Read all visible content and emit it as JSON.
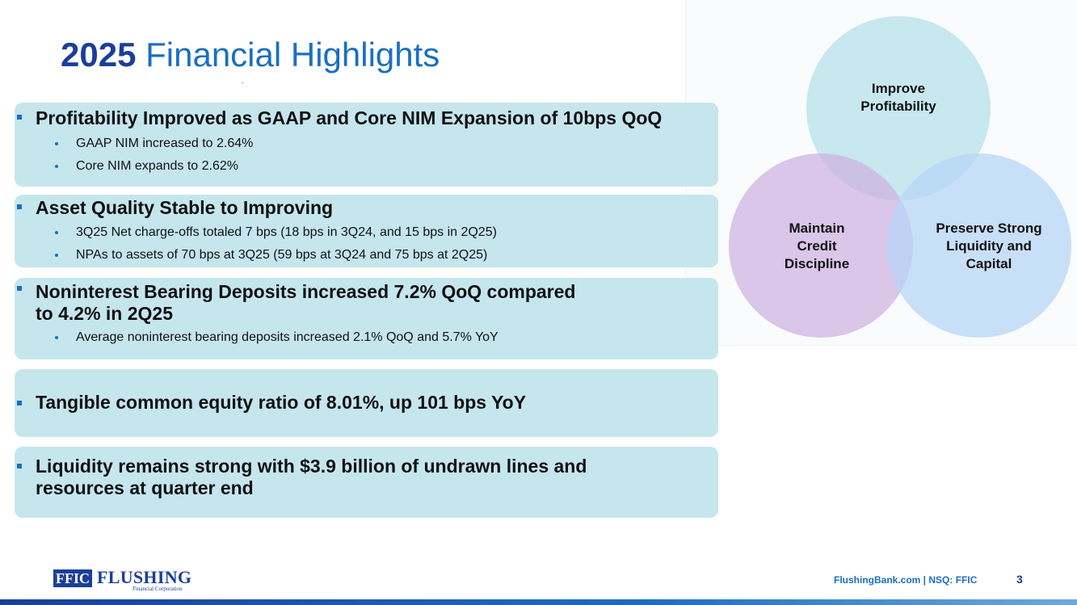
{
  "title": {
    "year": "2025",
    "text": "Financial Highlights"
  },
  "highlights": [
    {
      "heading": "Profitability Improved as GAAP and Core NIM Expansion of 10bps QoQ",
      "subs": [
        "GAAP NIM increased to 2.64%",
        "Core NIM expands to 2.62%"
      ]
    },
    {
      "heading": "Asset Quality Stable to Improving",
      "subs": [
        "3Q25 Net charge-offs totaled 7 bps (18 bps in 3Q24, and 15 bps in 2Q25)",
        "NPAs to assets of 70 bps at 3Q25 (59 bps at 3Q24 and 75 bps at 2Q25)"
      ]
    },
    {
      "heading_line1": "Noninterest Bearing Deposits increased 7.2% QoQ compared",
      "heading_line2": "to 4.2% in 2Q25",
      "subs": [
        "Average noninterest bearing deposits increased 2.1% QoQ and 5.7% YoY"
      ]
    },
    {
      "heading": "Tangible common equity ratio of 8.01%, up 101 bps YoY"
    },
    {
      "heading_line1": "Liquidity remains strong with $3.9 billion of undrawn lines and",
      "heading_line2": "resources at quarter end"
    }
  ],
  "venn": {
    "top": [
      "Improve",
      "Profitability"
    ],
    "left": [
      "Maintain",
      "Credit",
      "Discipline"
    ],
    "right": [
      "Preserve Strong",
      "Liquidity and",
      "Capital"
    ]
  },
  "footer": {
    "logo_box": "FFIC",
    "logo_name": "FLUSHING",
    "logo_sub": "Financial Corporation",
    "text": "FlushingBank.com  |  NSQ: FFIC",
    "page": "3"
  },
  "colors": {
    "accent": "#1a6fc0",
    "dark": "#1a3f99",
    "box": "#c6e6ee"
  }
}
